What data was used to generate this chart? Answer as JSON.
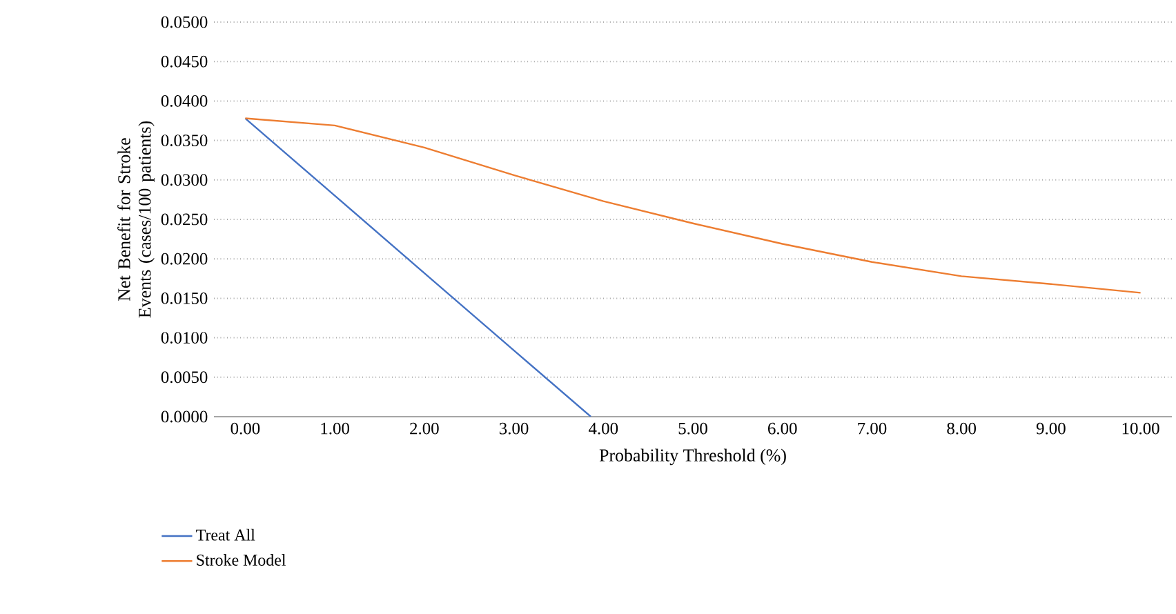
{
  "chart_data": {
    "type": "line",
    "xlabel": "Probability Threshold (%)",
    "ylabel": "Net Benefit for Stroke Events (cases/100 patients)",
    "xlim": [
      -0.35,
      10.35
    ],
    "xticks": [
      {
        "value": 0,
        "label": "0.00"
      },
      {
        "value": 1,
        "label": "1.00"
      },
      {
        "value": 2,
        "label": "2.00"
      },
      {
        "value": 3,
        "label": "3.00"
      },
      {
        "value": 4,
        "label": "4.00"
      },
      {
        "value": 5,
        "label": "5.00"
      },
      {
        "value": 6,
        "label": "6.00"
      },
      {
        "value": 7,
        "label": "7.00"
      },
      {
        "value": 8,
        "label": "8.00"
      },
      {
        "value": 9,
        "label": "9.00"
      },
      {
        "value": 10,
        "label": "10.00"
      }
    ],
    "ylim": [
      0,
      0.05
    ],
    "yticks": [
      {
        "value": 0,
        "label": "0.0000"
      },
      {
        "value": 0.005,
        "label": "0.0050"
      },
      {
        "value": 0.01,
        "label": "0.0100"
      },
      {
        "value": 0.015,
        "label": "0.0150"
      },
      {
        "value": 0.02,
        "label": "0.0200"
      },
      {
        "value": 0.025,
        "label": "0.0250"
      },
      {
        "value": 0.03,
        "label": "0.0300"
      },
      {
        "value": 0.035,
        "label": "0.0350"
      },
      {
        "value": 0.04,
        "label": "0.0400"
      },
      {
        "value": 0.045,
        "label": "0.0450"
      },
      {
        "value": 0.05,
        "label": "0.0500"
      }
    ],
    "series": [
      {
        "name": "Treat All",
        "color": "#4472c4",
        "x": [
          0,
          1,
          2,
          3,
          3.86
        ],
        "values": [
          0.0378,
          0.028,
          0.0182,
          0.0084,
          0
        ]
      },
      {
        "name": "Stroke Model",
        "color": "#ed7d31",
        "x": [
          0,
          1,
          2,
          3,
          4,
          5,
          6,
          7,
          8,
          9,
          10
        ],
        "values": [
          0.0378,
          0.0369,
          0.0341,
          0.0306,
          0.0273,
          0.0245,
          0.0219,
          0.0196,
          0.0178,
          0.0168,
          0.0157
        ]
      }
    ],
    "grid": "y",
    "legend": "bottom",
    "marker": "none",
    "line_style": "solid"
  }
}
